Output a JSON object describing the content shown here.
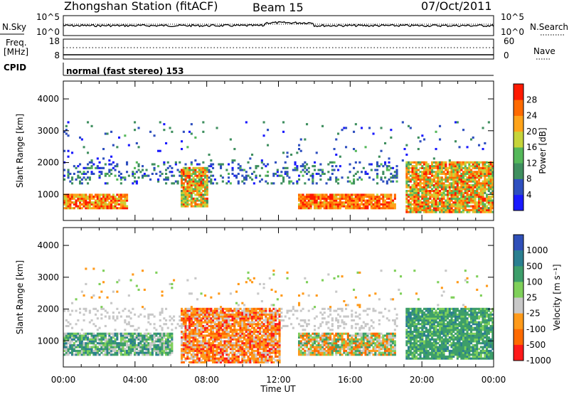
{
  "header": {
    "station": "Zhongshan Station (fitACF)",
    "beam": "Beam 15",
    "date": "07/Oct/2011"
  },
  "panels": {
    "nsky_label": "N.Sky",
    "nsearch_label": "N.Search",
    "freq_label_1": "Freq.",
    "freq_label_2": "[MHz]",
    "nave_label": "Nave",
    "cpid_label": "CPID",
    "cpid_text": "normal (fast stereo) 153",
    "nsky_ticks": [
      "10^5",
      "10^0"
    ],
    "nsearch_ticks": [
      "10^5",
      "10^0"
    ],
    "freq_ticks": [
      "18",
      "8"
    ],
    "nave_ticks": [
      "60",
      "0"
    ]
  },
  "colors": {
    "power": [
      "#1a1aff",
      "#2e4fbf",
      "#3f8f5f",
      "#55b85a",
      "#c6d43a",
      "#ffa31a",
      "#ff6a00",
      "#ff1a00"
    ],
    "velocity": [
      "#ff1a1a",
      "#ff6a00",
      "#ff9a1a",
      "#c8c8c8",
      "#7fd05a",
      "#3d9e6a",
      "#2a7f90",
      "#2f4fb8"
    ]
  },
  "chart_data": [
    {
      "type": "heatmap",
      "title": "",
      "xlabel": "Time UT",
      "ylabel": "Slant Range [km]",
      "x_ticks": [
        "00:00",
        "04:00",
        "08:00",
        "12:00",
        "16:00",
        "20:00",
        "00:00"
      ],
      "y_ticks": [
        "1000",
        "2000",
        "3000",
        "4000"
      ],
      "xlim": [
        0,
        24
      ],
      "ylim": [
        180,
        4560
      ],
      "colorbar": {
        "label": "Power [dB]",
        "ticks": [
          "4",
          "8",
          "12",
          "16",
          "20",
          "24",
          "28"
        ],
        "range": [
          0,
          32
        ]
      },
      "features": [
        {
          "t_start": 0.0,
          "t_end": 3.5,
          "range_km": [
            500,
            1000
          ],
          "value": "16-32"
        },
        {
          "t_start": 6.5,
          "t_end": 8.0,
          "range_km": [
            600,
            1800
          ],
          "value": "12-28"
        },
        {
          "t_start": 13.0,
          "t_end": 18.5,
          "range_km": [
            500,
            1000
          ],
          "value": "20-32"
        },
        {
          "t_start": 19.0,
          "t_end": 24.0,
          "range_km": [
            400,
            2000
          ],
          "value": "12-28"
        }
      ]
    },
    {
      "type": "heatmap",
      "title": "",
      "xlabel": "Time UT",
      "ylabel": "Slant Range [km]",
      "x_ticks": [
        "00:00",
        "04:00",
        "08:00",
        "12:00",
        "16:00",
        "20:00",
        "00:00"
      ],
      "y_ticks": [
        "1000",
        "2000",
        "3000",
        "4000"
      ],
      "xlim": [
        0,
        24
      ],
      "ylim": [
        180,
        4560
      ],
      "colorbar": {
        "label": "Velocity [m s⁻¹]",
        "ticks": [
          "1000",
          "500",
          "100",
          "25",
          "-25",
          "-100",
          "-500",
          "-1000"
        ],
        "range": [
          -1000,
          1000
        ]
      },
      "features": [
        {
          "t_start": 0.0,
          "t_end": 6.0,
          "range_km": [
            500,
            1200
          ],
          "value": "positive"
        },
        {
          "t_start": 6.5,
          "t_end": 12.0,
          "range_km": [
            300,
            2000
          ],
          "value": "negative"
        },
        {
          "t_start": 13.0,
          "t_end": 18.5,
          "range_km": [
            500,
            1200
          ],
          "value": "mixed"
        },
        {
          "t_start": 19.0,
          "t_end": 24.0,
          "range_km": [
            400,
            2000
          ],
          "value": "positive"
        }
      ]
    }
  ]
}
